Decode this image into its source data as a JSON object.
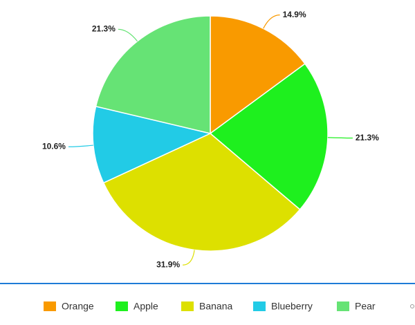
{
  "chart_data": {
    "type": "pie",
    "categories": [
      "Orange",
      "Apple",
      "Banana",
      "Blueberry",
      "Pear"
    ],
    "values": [
      14.9,
      21.3,
      31.9,
      10.6,
      21.3
    ],
    "value_labels": [
      "14.9%",
      "21.3%",
      "31.9%",
      "10.6%",
      "21.3%"
    ],
    "colors": [
      "#f99a00",
      "#1ef01e",
      "#dde000",
      "#22cbe6",
      "#66e375"
    ],
    "legend": "bottom"
  }
}
